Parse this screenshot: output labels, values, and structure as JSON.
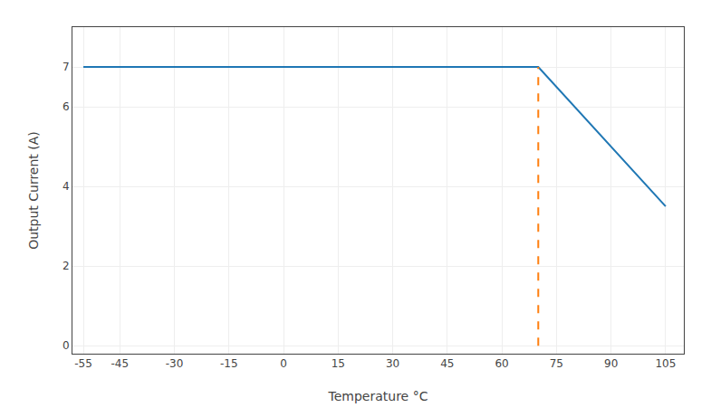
{
  "chart_data": {
    "type": "line",
    "xlabel": "Temperature °C",
    "ylabel": "Output Current (A)",
    "series": [
      {
        "x": [
          -55,
          70,
          105
        ],
        "values": [
          7.0,
          7.0,
          3.5
        ],
        "line_style": "solid"
      },
      {
        "x": [
          70,
          70
        ],
        "values": [
          0,
          7.0
        ],
        "line_style": "dashed"
      }
    ],
    "xlim": [
      -58,
      110
    ],
    "xticks": [
      -55,
      -45,
      -30,
      -15,
      0,
      15,
      30,
      45,
      60,
      75,
      90,
      105
    ],
    "ylim": [
      -0.2,
      8
    ],
    "yticks": [
      0,
      2,
      4,
      6,
      7
    ],
    "grid": true
  }
}
